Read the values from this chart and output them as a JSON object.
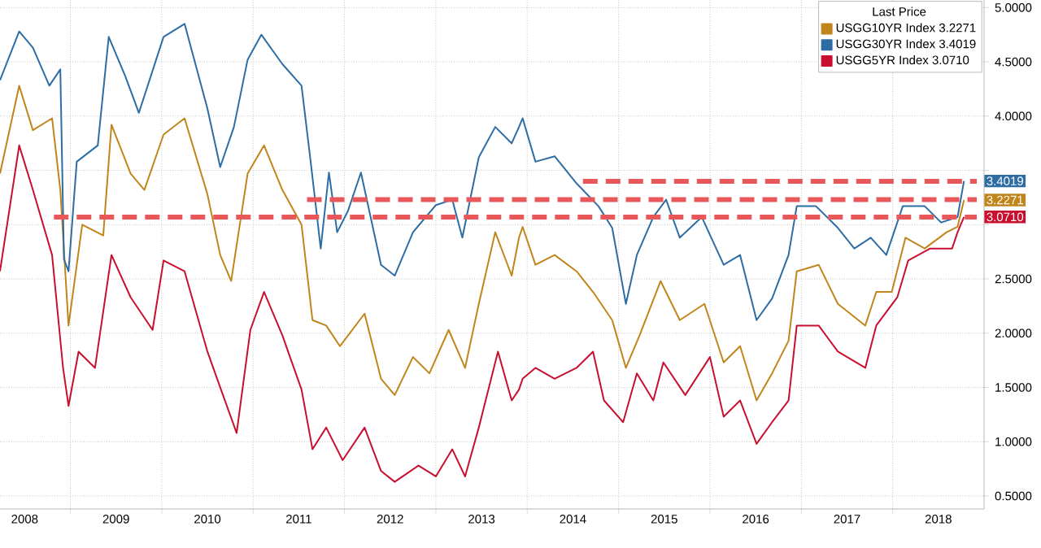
{
  "chart_data": {
    "type": "line",
    "legend_title": "Last Price",
    "legend": "top right",
    "grid": true,
    "xlim": [
      2008.23,
      2019.0
    ],
    "ylim": [
      0.38,
      5.07
    ],
    "xticks": [
      {
        "value": 2009,
        "label": null
      },
      {
        "value": 2010,
        "label": null
      },
      {
        "value": 2011,
        "label": null
      },
      {
        "value": 2012,
        "label": null
      },
      {
        "value": 2013,
        "label": null
      },
      {
        "value": 2014,
        "label": null
      },
      {
        "value": 2015,
        "label": null
      },
      {
        "value": 2016,
        "label": null
      },
      {
        "value": 2017,
        "label": null
      },
      {
        "value": 2018,
        "label": null
      },
      {
        "value": 2008.5,
        "label": "2008"
      },
      {
        "value": 2009.5,
        "label": "2009"
      },
      {
        "value": 2010.5,
        "label": "2010"
      },
      {
        "value": 2011.5,
        "label": "2011"
      },
      {
        "value": 2012.5,
        "label": "2012"
      },
      {
        "value": 2013.5,
        "label": "2013"
      },
      {
        "value": 2014.5,
        "label": "2014"
      },
      {
        "value": 2015.5,
        "label": "2015"
      },
      {
        "value": 2016.5,
        "label": "2016"
      },
      {
        "value": 2017.5,
        "label": "2017"
      },
      {
        "value": 2018.5,
        "label": "2018"
      }
    ],
    "yticks": [
      {
        "value": 0.5,
        "label": "0.5000"
      },
      {
        "value": 1.0,
        "label": "1.0000"
      },
      {
        "value": 1.5,
        "label": "1.5000"
      },
      {
        "value": 2.0,
        "label": "2.0000"
      },
      {
        "value": 2.5,
        "label": "2.5000"
      },
      {
        "value": 3.0,
        "label": null
      },
      {
        "value": 3.5,
        "label": null
      },
      {
        "value": 4.0,
        "label": "4.0000"
      },
      {
        "value": 4.5,
        "label": "4.5000"
      },
      {
        "value": 5.0,
        "label": "5.0000"
      }
    ],
    "series": [
      {
        "name": "USGG10YR Index 3.2271",
        "color": "#c0861b",
        "x": [
          2008.23,
          2008.44,
          2008.59,
          2008.8,
          2008.89,
          2008.98,
          2009.13,
          2009.36,
          2009.45,
          2009.66,
          2009.81,
          2010.02,
          2010.25,
          2010.5,
          2010.64,
          2010.76,
          2010.94,
          2011.12,
          2011.32,
          2011.53,
          2011.65,
          2011.8,
          2011.95,
          2012.22,
          2012.4,
          2012.55,
          2012.75,
          2012.93,
          2013.14,
          2013.32,
          2013.47,
          2013.65,
          2013.83,
          2013.91,
          2013.95,
          2014.09,
          2014.3,
          2014.54,
          2014.72,
          2014.93,
          2015.08,
          2015.23,
          2015.46,
          2015.67,
          2015.94,
          2016.15,
          2016.33,
          2016.51,
          2016.68,
          2016.86,
          2016.95,
          2017.19,
          2017.4,
          2017.7,
          2017.82,
          2017.99,
          2018.14,
          2018.35,
          2018.59,
          2018.71,
          2018.78
        ],
        "values": [
          3.47,
          4.28,
          3.87,
          3.98,
          3.32,
          2.07,
          3.0,
          2.9,
          3.92,
          3.47,
          3.32,
          3.83,
          3.98,
          3.28,
          2.72,
          2.48,
          3.47,
          3.73,
          3.32,
          3.0,
          2.12,
          2.07,
          1.88,
          2.18,
          1.58,
          1.43,
          1.78,
          1.63,
          2.03,
          1.68,
          2.27,
          2.93,
          2.53,
          2.88,
          2.98,
          2.63,
          2.72,
          2.57,
          2.38,
          2.12,
          1.68,
          1.98,
          2.48,
          2.12,
          2.27,
          1.73,
          1.88,
          1.38,
          1.63,
          1.93,
          2.57,
          2.63,
          2.27,
          2.07,
          2.38,
          2.38,
          2.88,
          2.78,
          2.93,
          2.98,
          3.2271
        ],
        "value_labels": [
          null,
          null,
          null,
          null,
          null,
          null,
          null,
          null,
          null,
          null,
          null,
          null,
          null,
          null,
          null,
          null,
          null,
          null,
          null,
          null,
          null,
          null,
          null,
          null,
          null,
          null,
          null,
          null,
          null,
          null,
          null,
          null,
          null,
          null,
          null,
          null,
          null,
          null,
          null,
          null,
          null,
          null,
          null,
          null,
          null,
          null,
          null,
          null,
          null,
          null,
          null,
          null,
          null,
          null,
          null,
          null,
          null,
          null,
          null,
          null,
          "3.2271"
        ]
      },
      {
        "name": "USGG30YR Index 3.4019",
        "color": "#2e6da4",
        "x": [
          2008.23,
          2008.44,
          2008.59,
          2008.77,
          2008.89,
          2008.93,
          2008.98,
          2009.07,
          2009.3,
          2009.42,
          2009.6,
          2009.75,
          2010.02,
          2010.25,
          2010.5,
          2010.64,
          2010.79,
          2010.94,
          2011.09,
          2011.32,
          2011.53,
          2011.63,
          2011.74,
          2011.83,
          2011.92,
          2012.04,
          2012.18,
          2012.4,
          2012.55,
          2012.75,
          2013.0,
          2013.18,
          2013.29,
          2013.47,
          2013.65,
          2013.83,
          2013.91,
          2013.95,
          2014.09,
          2014.3,
          2014.54,
          2014.78,
          2014.93,
          2015.08,
          2015.2,
          2015.38,
          2015.52,
          2015.67,
          2015.91,
          2016.15,
          2016.33,
          2016.51,
          2016.68,
          2016.86,
          2016.95,
          2017.16,
          2017.4,
          2017.58,
          2017.76,
          2017.93,
          2018.11,
          2018.35,
          2018.53,
          2018.71,
          2018.78
        ],
        "values": [
          4.33,
          4.78,
          4.63,
          4.28,
          4.43,
          2.68,
          2.57,
          3.58,
          3.73,
          4.73,
          4.37,
          4.03,
          4.73,
          4.85,
          4.07,
          3.53,
          3.9,
          4.52,
          4.75,
          4.48,
          4.28,
          3.58,
          2.78,
          3.48,
          2.93,
          3.13,
          3.48,
          2.63,
          2.53,
          2.93,
          3.18,
          3.23,
          2.88,
          3.62,
          3.9,
          3.75,
          3.9,
          3.98,
          3.58,
          3.63,
          3.38,
          3.17,
          2.97,
          2.27,
          2.72,
          3.07,
          3.23,
          2.88,
          3.07,
          2.63,
          2.72,
          2.12,
          2.32,
          2.72,
          3.17,
          3.17,
          2.97,
          2.78,
          2.88,
          2.72,
          3.17,
          3.17,
          3.02,
          3.07,
          3.4019
        ],
        "value_labels": [
          null,
          null,
          null,
          null,
          null,
          null,
          null,
          null,
          null,
          null,
          null,
          null,
          null,
          null,
          null,
          null,
          null,
          null,
          null,
          null,
          null,
          null,
          null,
          null,
          null,
          null,
          null,
          null,
          null,
          null,
          null,
          null,
          null,
          null,
          null,
          null,
          null,
          null,
          null,
          null,
          null,
          null,
          null,
          null,
          null,
          null,
          null,
          null,
          null,
          null,
          null,
          null,
          null,
          null,
          null,
          null,
          null,
          null,
          null,
          null,
          null,
          null,
          null,
          null,
          "3.4019"
        ]
      },
      {
        "name": "USGG5YR Index 3.0710",
        "color": "#c8102e",
        "x": [
          2008.23,
          2008.44,
          2008.59,
          2008.8,
          2008.92,
          2008.98,
          2009.09,
          2009.27,
          2009.45,
          2009.66,
          2009.9,
          2010.02,
          2010.25,
          2010.5,
          2010.67,
          2010.82,
          2010.97,
          2011.12,
          2011.32,
          2011.53,
          2011.65,
          2011.8,
          2011.98,
          2012.22,
          2012.4,
          2012.55,
          2012.81,
          2013.0,
          2013.18,
          2013.32,
          2013.47,
          2013.68,
          2013.83,
          2013.91,
          2013.95,
          2014.09,
          2014.3,
          2014.54,
          2014.72,
          2014.84,
          2015.05,
          2015.2,
          2015.38,
          2015.49,
          2015.73,
          2016.0,
          2016.15,
          2016.33,
          2016.51,
          2016.68,
          2016.86,
          2016.95,
          2017.19,
          2017.4,
          2017.7,
          2017.82,
          2018.05,
          2018.17,
          2018.41,
          2018.65,
          2018.71,
          2018.78
        ],
        "values": [
          2.57,
          3.73,
          3.32,
          2.72,
          1.68,
          1.33,
          1.83,
          1.68,
          2.72,
          2.33,
          2.03,
          2.67,
          2.57,
          1.83,
          1.43,
          1.08,
          2.03,
          2.38,
          1.98,
          1.48,
          0.93,
          1.13,
          0.83,
          1.13,
          0.73,
          0.63,
          0.78,
          0.68,
          0.93,
          0.68,
          1.13,
          1.83,
          1.38,
          1.48,
          1.58,
          1.68,
          1.58,
          1.68,
          1.83,
          1.38,
          1.18,
          1.63,
          1.38,
          1.73,
          1.43,
          1.78,
          1.23,
          1.38,
          0.98,
          1.18,
          1.38,
          2.07,
          2.07,
          1.83,
          1.68,
          2.07,
          2.33,
          2.67,
          2.78,
          2.78,
          2.93,
          3.071
        ],
        "value_labels": [
          null,
          null,
          null,
          null,
          null,
          null,
          null,
          null,
          null,
          null,
          null,
          null,
          null,
          null,
          null,
          null,
          null,
          null,
          null,
          null,
          null,
          null,
          null,
          null,
          null,
          null,
          null,
          null,
          null,
          null,
          null,
          null,
          null,
          null,
          null,
          null,
          null,
          null,
          null,
          null,
          null,
          null,
          null,
          null,
          null,
          null,
          null,
          null,
          null,
          null,
          null,
          null,
          null,
          null,
          null,
          null,
          null,
          null,
          null,
          null,
          null,
          "3.0710"
        ]
      },
      {
        "type": "line",
        "line_style": "dashed",
        "color": "#e8585a",
        "x": [
          2008.82,
          2018.92
        ],
        "values": [
          3.07,
          3.07
        ]
      },
      {
        "type": "line",
        "line_style": "dashed",
        "color": "#e8585a",
        "x": [
          2011.59,
          2018.92
        ],
        "values": [
          3.23,
          3.23
        ]
      },
      {
        "type": "line",
        "line_style": "dashed",
        "color": "#e8585a",
        "x": [
          2014.61,
          2018.92
        ],
        "values": [
          3.4,
          3.4
        ]
      }
    ]
  }
}
